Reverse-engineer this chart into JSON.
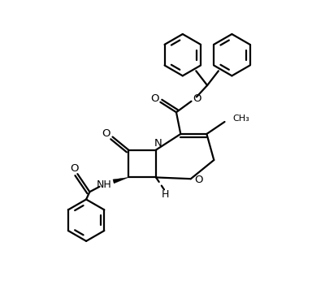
{
  "background_color": "#ffffff",
  "line_color": "#000000",
  "line_width": 1.6,
  "fig_width": 3.84,
  "fig_height": 3.62,
  "dpi": 100,
  "xlim": [
    0,
    10
  ],
  "ylim": [
    0,
    10
  ]
}
